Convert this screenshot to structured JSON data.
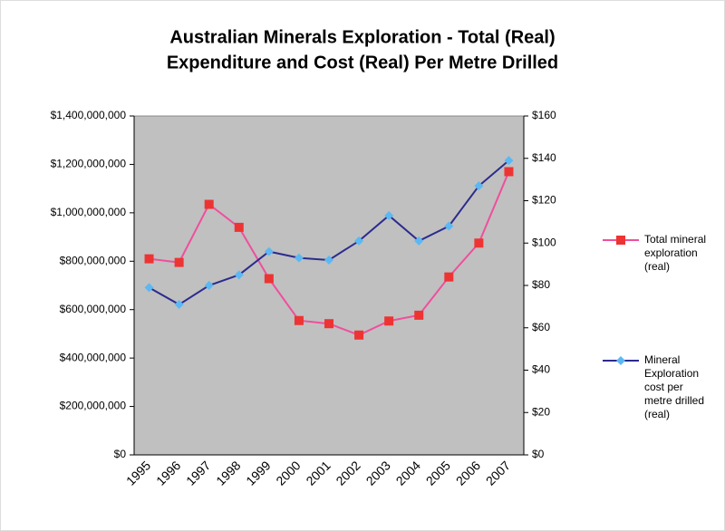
{
  "chart_data": {
    "type": "line",
    "title": [
      "Australian Minerals Exploration - Total (Real)",
      "Expenditure and Cost (Real) Per Metre Drilled"
    ],
    "categories": [
      "1995",
      "1996",
      "1997",
      "1998",
      "1999",
      "2000",
      "2001",
      "2002",
      "2003",
      "2004",
      "2005",
      "2006",
      "2007"
    ],
    "series": [
      {
        "name": "Total mineral exploration (real)",
        "color": "#ef4f9c",
        "marker_color": "#ee3333",
        "marker": "square",
        "values": [
          810000000,
          795000000,
          1035000000,
          940000000,
          728000000,
          555000000,
          542000000,
          495000000,
          553000000,
          577000000,
          735000000,
          875000000,
          1170000000
        ]
      },
      {
        "name": "Mineral Exploration cost per metre drilled (real)",
        "color": "#2b2b8f",
        "marker_color": "#5cb8f2",
        "marker": "diamond",
        "axis": "y2",
        "values": [
          79,
          71,
          80,
          85,
          96,
          93,
          92,
          101,
          113,
          101,
          108,
          127,
          139
        ]
      }
    ],
    "ylim": [
      0,
      1400000000
    ],
    "yticks": [
      {
        "value": 0,
        "label": "$0"
      },
      {
        "value": 200000000,
        "label": "$200,000,000"
      },
      {
        "value": 400000000,
        "label": "$400,000,000"
      },
      {
        "value": 600000000,
        "label": "$600,000,000"
      },
      {
        "value": 800000000,
        "label": "$800,000,000"
      },
      {
        "value": 1000000000,
        "label": "$1,000,000,000"
      },
      {
        "value": 1200000000,
        "label": "$1,200,000,000"
      },
      {
        "value": 1400000000,
        "label": "$1,400,000,000"
      }
    ],
    "y2lim": [
      0,
      160
    ],
    "y2ticks": [
      {
        "value": 0,
        "label": "$0"
      },
      {
        "value": 20,
        "label": "$20"
      },
      {
        "value": 40,
        "label": "$40"
      },
      {
        "value": 60,
        "label": "$60"
      },
      {
        "value": 80,
        "label": "$80"
      },
      {
        "value": 100,
        "label": "$100"
      },
      {
        "value": 120,
        "label": "$120"
      },
      {
        "value": 140,
        "label": "$140"
      },
      {
        "value": 160,
        "label": "$160"
      }
    ],
    "plot_background": "#c0c0c0",
    "legend": "right"
  }
}
